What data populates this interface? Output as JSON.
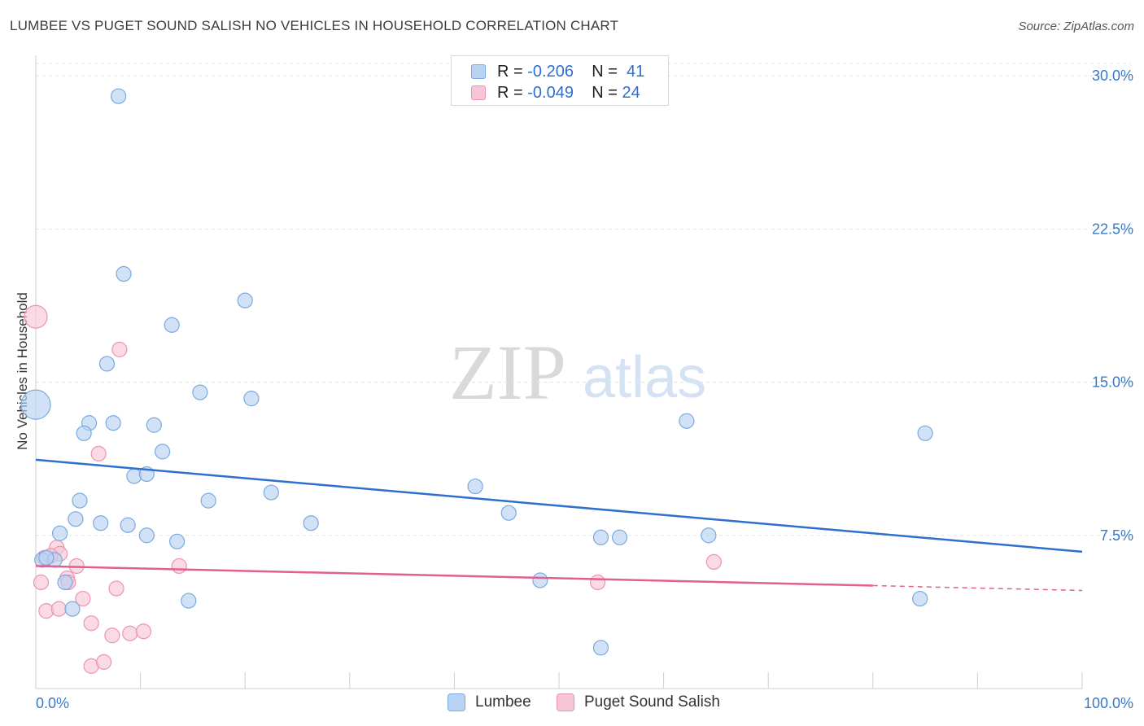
{
  "title": "LUMBEE VS PUGET SOUND SALISH NO VEHICLES IN HOUSEHOLD CORRELATION CHART",
  "source": "Source: ZipAtlas.com",
  "watermark": {
    "zip": "ZIP",
    "atlas": "atlas"
  },
  "colors": {
    "lumbee_fill": "#b8d3f3",
    "lumbee_stroke": "#7aa9e0",
    "lumbee_line": "#2e6fcf",
    "salish_fill": "#f7c6d6",
    "salish_stroke": "#ec94b2",
    "salish_line": "#e0608e",
    "grid": "#e3e3e3",
    "axis_text": "#3a78c9"
  },
  "stats": {
    "lumbee": {
      "r_label": "R =",
      "r_value": "-0.206",
      "n_label": "N =",
      "n_value": "41"
    },
    "salish": {
      "r_label": "R =",
      "r_value": "-0.049",
      "n_label": "N =",
      "n_value": "24"
    }
  },
  "legend": {
    "lumbee": "Lumbee",
    "salish": "Puget Sound Salish"
  },
  "chart_data": {
    "type": "scatter",
    "title": "LUMBEE VS PUGET SOUND SALISH NO VEHICLES IN HOUSEHOLD CORRELATION CHART",
    "xlabel": "",
    "ylabel": "No Vehicles in Household",
    "xlim": [
      0,
      100
    ],
    "ylim": [
      0,
      31
    ],
    "x_tick_labels": [
      "0.0%",
      "100.0%"
    ],
    "y_ticks": [
      7.5,
      15.0,
      22.5,
      30.0
    ],
    "y_tick_labels": [
      "7.5%",
      "15.0%",
      "22.5%",
      "30.0%"
    ],
    "grid": true,
    "series": [
      {
        "name": "Lumbee",
        "points": [
          [
            7.9,
            29.0
          ],
          [
            8.4,
            20.3
          ],
          [
            20.0,
            19.0
          ],
          [
            13.0,
            17.8
          ],
          [
            6.8,
            15.9
          ],
          [
            0.0,
            13.9
          ],
          [
            15.7,
            14.5
          ],
          [
            20.6,
            14.2
          ],
          [
            5.1,
            13.0
          ],
          [
            7.4,
            13.0
          ],
          [
            11.3,
            12.9
          ],
          [
            4.6,
            12.5
          ],
          [
            12.1,
            11.6
          ],
          [
            9.4,
            10.4
          ],
          [
            10.6,
            10.5
          ],
          [
            42.0,
            9.9
          ],
          [
            22.5,
            9.6
          ],
          [
            4.2,
            9.2
          ],
          [
            16.5,
            9.2
          ],
          [
            3.8,
            8.3
          ],
          [
            6.2,
            8.1
          ],
          [
            8.8,
            8.0
          ],
          [
            26.3,
            8.1
          ],
          [
            45.2,
            8.6
          ],
          [
            2.3,
            7.6
          ],
          [
            10.6,
            7.5
          ],
          [
            13.5,
            7.2
          ],
          [
            54.0,
            7.4
          ],
          [
            55.8,
            7.4
          ],
          [
            64.3,
            7.5
          ],
          [
            0.6,
            6.3
          ],
          [
            1.8,
            6.3
          ],
          [
            1.0,
            6.4
          ],
          [
            2.8,
            5.2
          ],
          [
            48.2,
            5.3
          ],
          [
            3.5,
            3.9
          ],
          [
            14.6,
            4.3
          ],
          [
            84.5,
            4.4
          ],
          [
            54.0,
            2.0
          ],
          [
            62.2,
            13.1
          ],
          [
            85.0,
            12.5
          ]
        ]
      },
      {
        "name": "Puget Sound Salish",
        "points": [
          [
            0.0,
            18.2
          ],
          [
            8.0,
            16.6
          ],
          [
            6.0,
            11.5
          ],
          [
            2.0,
            6.9
          ],
          [
            2.3,
            6.6
          ],
          [
            0.8,
            6.4
          ],
          [
            1.4,
            6.5
          ],
          [
            3.9,
            6.0
          ],
          [
            13.7,
            6.0
          ],
          [
            64.8,
            6.2
          ],
          [
            0.5,
            5.2
          ],
          [
            3.0,
            5.4
          ],
          [
            3.1,
            5.2
          ],
          [
            7.7,
            4.9
          ],
          [
            4.5,
            4.4
          ],
          [
            53.7,
            5.2
          ],
          [
            1.0,
            3.8
          ],
          [
            2.2,
            3.9
          ],
          [
            5.3,
            3.2
          ],
          [
            7.3,
            2.6
          ],
          [
            9.0,
            2.7
          ],
          [
            10.3,
            2.8
          ],
          [
            5.3,
            1.1
          ],
          [
            6.5,
            1.3
          ]
        ]
      }
    ],
    "trendlines": [
      {
        "series": "Lumbee",
        "from": [
          0,
          11.2
        ],
        "to": [
          100,
          6.7
        ],
        "dashed_from": null
      },
      {
        "series": "Puget Sound Salish",
        "from": [
          0,
          6.0
        ],
        "to": [
          100,
          4.8
        ],
        "dashed_from": 80
      }
    ]
  }
}
